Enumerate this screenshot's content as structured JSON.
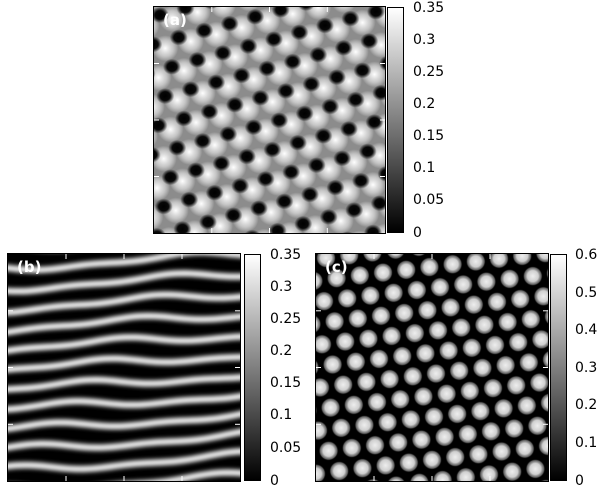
{
  "panels": [
    {
      "label": "(a)",
      "pattern": "hexagonal-lattice",
      "colorbar": [
        "0.35",
        "0.3",
        "0.25",
        "0.2",
        "0.15",
        "0.1",
        "0.05",
        "0"
      ]
    },
    {
      "label": "(b)",
      "pattern": "stripes",
      "colorbar": [
        "0.35",
        "0.3",
        "0.25",
        "0.2",
        "0.15",
        "0.1",
        "0.05",
        "0"
      ]
    },
    {
      "label": "(c)",
      "pattern": "spots",
      "colorbar": [
        "0.6",
        "0.5",
        "0.4",
        "0.3",
        "0.2",
        "0.1",
        "0"
      ]
    }
  ],
  "colors": {
    "high": "#ffffff",
    "low": "#000000"
  }
}
